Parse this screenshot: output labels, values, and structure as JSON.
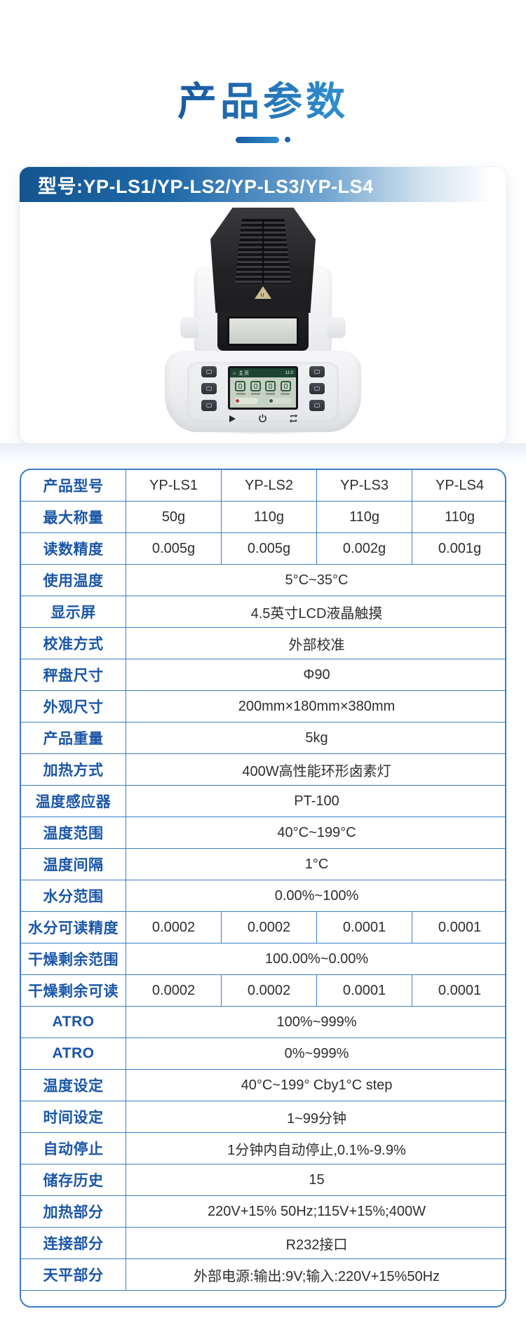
{
  "title": "产品参数",
  "model_header": "型号:YP-LS1/YP-LS2/YP-LS3/YP-LS4",
  "colors": {
    "title_gradient_start": "#1b5ca3",
    "title_gradient_end": "#2e8ccb",
    "header_bar_blue": "#14558f",
    "table_border": "#3a7ec6",
    "label_blue": "#1a56a8",
    "value_dark": "#2e2e2e"
  },
  "device": {
    "screen_header": "主页",
    "screen_time": "11:0",
    "panel_icons": [
      "play-icon",
      "power-icon",
      "tare-icon"
    ],
    "screen_icons": [
      "gauge-icon",
      "gauge-icon",
      "document-icon",
      "book-icon"
    ]
  },
  "table": {
    "rows": [
      {
        "label": "产品型号",
        "values": [
          "YP-LS1",
          "YP-LS2",
          "YP-LS3",
          "YP-LS4"
        ]
      },
      {
        "label": "最大称量",
        "values": [
          "50g",
          "110g",
          "110g",
          "110g"
        ]
      },
      {
        "label": "读数精度",
        "values": [
          "0.005g",
          "0.005g",
          "0.002g",
          "0.001g"
        ]
      },
      {
        "label": "使用温度",
        "value": "5°C~35°C"
      },
      {
        "label": "显示屏",
        "value": "4.5英寸LCD液晶触摸"
      },
      {
        "label": "校准方式",
        "value": "外部校准"
      },
      {
        "label": "秤盘尺寸",
        "value": "Φ90"
      },
      {
        "label": "外观尺寸",
        "value": "200mm×180mm×380mm"
      },
      {
        "label": "产品重量",
        "value": "5kg"
      },
      {
        "label": "加热方式",
        "value": "400W高性能环形卤素灯"
      },
      {
        "label": "温度感应器",
        "value": "PT-100"
      },
      {
        "label": "温度范围",
        "value": "40°C~199°C"
      },
      {
        "label": "温度间隔",
        "value": "1°C"
      },
      {
        "label": "水分范围",
        "value": "0.00%~100%"
      },
      {
        "label": "水分可读精度",
        "values": [
          "0.0002",
          "0.0002",
          "0.0001",
          "0.0001"
        ]
      },
      {
        "label": "干燥剩余范围",
        "value": "100.00%~0.00%"
      },
      {
        "label": "干燥剩余可读",
        "values": [
          "0.0002",
          "0.0002",
          "0.0001",
          "0.0001"
        ]
      },
      {
        "label": "ATRO",
        "value": "100%~999%"
      },
      {
        "label": "ATRO",
        "value": "0%~999%"
      },
      {
        "label": "温度设定",
        "value": "40°C~199° Cby1°C step"
      },
      {
        "label": "时间设定",
        "value": "1~99分钟"
      },
      {
        "label": "自动停止",
        "value": "1分钟内自动停止,0.1%-9.9%"
      },
      {
        "label": "储存历史",
        "value": "15"
      },
      {
        "label": "加热部分",
        "value": "220V+15% 50Hz;115V+15%;400W"
      },
      {
        "label": "连接部分",
        "value": "R232接口"
      },
      {
        "label": "天平部分",
        "value": "外部电源:输出:9V;输入:220V+15%50Hz"
      }
    ]
  }
}
